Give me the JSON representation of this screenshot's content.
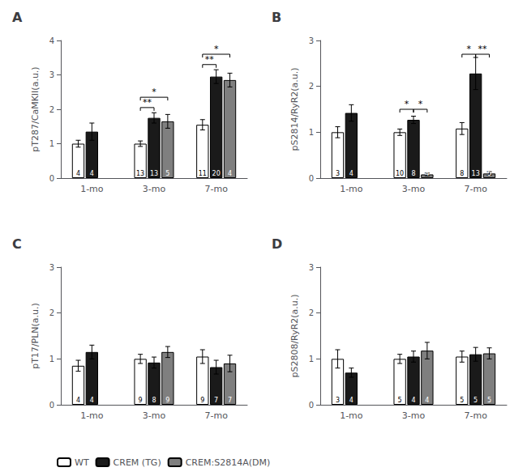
{
  "chart_data": [
    {
      "type": "bar",
      "title": "A",
      "ylabel": "pT287/CaMKII(a.u.)",
      "categories": [
        "1-mo",
        "3-mo",
        "7-mo"
      ],
      "series": [
        {
          "name": "WT",
          "color": "#ffffff",
          "values": [
            1.0,
            1.0,
            1.55
          ],
          "errors": [
            0.1,
            0.08,
            0.15
          ],
          "n": [
            4,
            13,
            11
          ]
        },
        {
          "name": "CREM (TG)",
          "color": "#1a1a1a",
          "values": [
            1.35,
            1.75,
            2.95
          ],
          "errors": [
            0.25,
            0.15,
            0.2
          ],
          "n": [
            4,
            13,
            20
          ]
        },
        {
          "name": "CREM:S2814A(DM)",
          "color": "#7f7f7f",
          "values": [
            null,
            1.65,
            2.85
          ],
          "errors": [
            null,
            0.2,
            0.2
          ],
          "n": [
            null,
            5,
            4
          ]
        }
      ],
      "annotations": [
        {
          "text": "**",
          "category": "3-mo",
          "between": [
            "WT",
            "CREM (TG)"
          ],
          "y": 2.05
        },
        {
          "text": "*",
          "category": "3-mo",
          "between": [
            "WT",
            "CREM:S2814A(DM)"
          ],
          "y": 2.35
        },
        {
          "text": "**",
          "category": "7-mo",
          "between": [
            "WT",
            "CREM (TG)"
          ],
          "y": 3.3
        },
        {
          "text": "*",
          "category": "7-mo",
          "between": [
            "WT",
            "CREM:S2814A(DM)"
          ],
          "y": 3.6
        }
      ],
      "ylim": [
        0,
        4
      ],
      "yticks": [
        0,
        1,
        2,
        3,
        4
      ],
      "grid": false
    },
    {
      "type": "bar",
      "title": "B",
      "ylabel": "pS2814/RyR2(a.u.)",
      "categories": [
        "1-mo",
        "3-mo",
        "7-mo"
      ],
      "series": [
        {
          "name": "WT",
          "color": "#ffffff",
          "values": [
            1.0,
            1.0,
            1.08
          ],
          "errors": [
            0.12,
            0.07,
            0.13
          ],
          "n": [
            3,
            10,
            8
          ]
        },
        {
          "name": "CREM (TG)",
          "color": "#1a1a1a",
          "values": [
            1.42,
            1.27,
            2.28
          ],
          "errors": [
            0.18,
            0.08,
            0.35
          ],
          "n": [
            4,
            8,
            13
          ]
        },
        {
          "name": "CREM:S2814A(DM)",
          "color": "#7f7f7f",
          "values": [
            null,
            0.08,
            0.1
          ],
          "errors": [
            null,
            0.03,
            0.04
          ],
          "n": [
            null,
            4,
            5
          ]
        }
      ],
      "annotations": [
        {
          "text": "*",
          "category": "3-mo",
          "between": [
            "WT",
            "CREM (TG)"
          ],
          "y": 1.5
        },
        {
          "text": "*",
          "category": "3-mo",
          "between": [
            "CREM (TG)",
            "CREM:S2814A(DM)"
          ],
          "y": 1.5
        },
        {
          "text": "*",
          "category": "7-mo",
          "between": [
            "WT",
            "CREM (TG)"
          ],
          "y": 2.7
        },
        {
          "text": "**",
          "category": "7-mo",
          "between": [
            "CREM (TG)",
            "CREM:S2814A(DM)"
          ],
          "y": 2.7
        }
      ],
      "ylim": [
        0,
        3
      ],
      "yticks": [
        0,
        1,
        2,
        3
      ],
      "grid": false
    },
    {
      "type": "bar",
      "title": "C",
      "ylabel": "pT17/PLN(a.u.)",
      "categories": [
        "1-mo",
        "3-mo",
        "7-mo"
      ],
      "series": [
        {
          "name": "WT",
          "color": "#ffffff",
          "values": [
            0.85,
            1.0,
            1.05
          ],
          "errors": [
            0.12,
            0.1,
            0.15
          ],
          "n": [
            4,
            9,
            9
          ]
        },
        {
          "name": "CREM (TG)",
          "color": "#1a1a1a",
          "values": [
            1.15,
            0.92,
            0.82
          ],
          "errors": [
            0.15,
            0.12,
            0.15
          ],
          "n": [
            4,
            8,
            7
          ]
        },
        {
          "name": "CREM:S2814A(DM)",
          "color": "#7f7f7f",
          "values": [
            null,
            1.15,
            0.9
          ],
          "errors": [
            null,
            0.12,
            0.18
          ],
          "n": [
            null,
            9,
            7
          ]
        }
      ],
      "ylim": [
        0,
        3
      ],
      "yticks": [
        0,
        1,
        2,
        3
      ],
      "grid": false,
      "legend": "bottom"
    },
    {
      "type": "bar",
      "title": "D",
      "ylabel": "pS2808/RyR2(a.u.)",
      "categories": [
        "1-mo",
        "3-mo",
        "7-mo"
      ],
      "series": [
        {
          "name": "WT",
          "color": "#ffffff",
          "values": [
            1.0,
            1.0,
            1.05
          ],
          "errors": [
            0.2,
            0.1,
            0.12
          ],
          "n": [
            3,
            5,
            5
          ]
        },
        {
          "name": "CREM (TG)",
          "color": "#1a1a1a",
          "values": [
            0.7,
            1.05,
            1.1
          ],
          "errors": [
            0.1,
            0.12,
            0.15
          ],
          "n": [
            4,
            4,
            5
          ]
        },
        {
          "name": "CREM:S2814A(DM)",
          "color": "#7f7f7f",
          "values": [
            null,
            1.18,
            1.12
          ],
          "errors": [
            null,
            0.18,
            0.12
          ],
          "n": [
            null,
            4,
            5
          ]
        }
      ],
      "ylim": [
        0,
        3
      ],
      "yticks": [
        0,
        1,
        2,
        3
      ],
      "grid": false
    }
  ]
}
